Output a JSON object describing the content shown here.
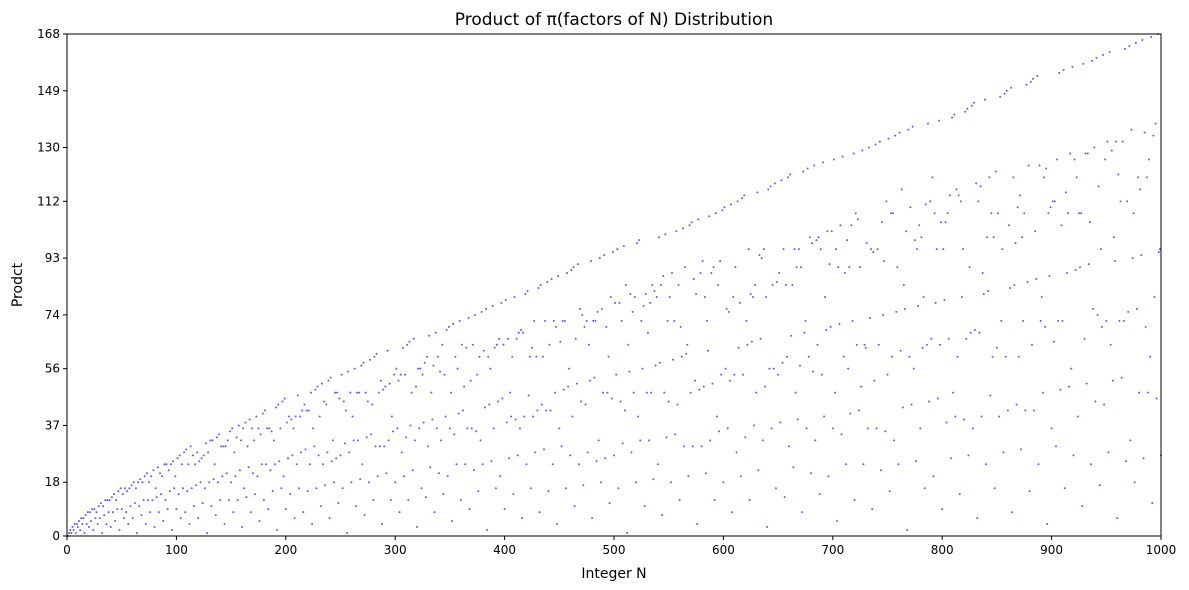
{
  "chart_data": {
    "type": "scatter",
    "title": "Product of π(factors of N) Distribution",
    "xlabel": "Integer N",
    "ylabel": "Prodct",
    "xlim": [
      0,
      1000
    ],
    "ylim": [
      0,
      168
    ],
    "xticks": [
      0,
      100,
      200,
      300,
      400,
      500,
      600,
      700,
      800,
      900,
      1000
    ],
    "yticks": [
      0,
      18,
      37,
      56,
      74,
      93,
      112,
      130,
      149,
      168
    ],
    "grid": false,
    "marker_color": "#3333ee",
    "series": [
      {
        "values_rule": "y(N) = product of the prime-counting function π(p) over the prime factorization of N (with multiplicity)",
        "x_range": [
          1,
          1000
        ]
      }
    ]
  }
}
